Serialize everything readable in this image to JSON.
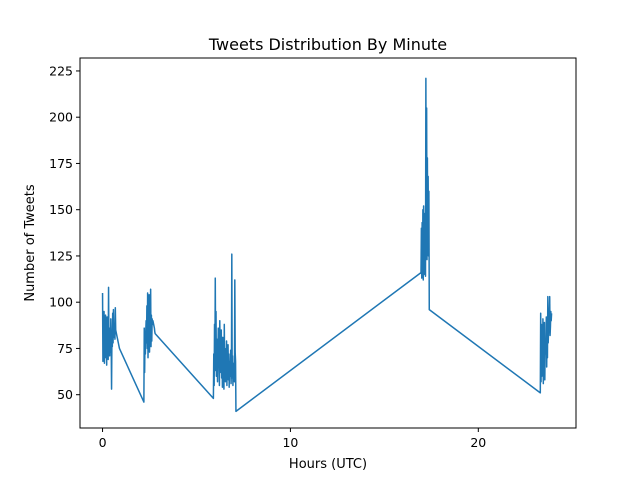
{
  "chart_data": {
    "type": "line",
    "title": "Tweets Distribution By Minute",
    "xlabel": "Hours (UTC)",
    "ylabel": "Number of Tweets",
    "xlim": [
      -1.2,
      25.2
    ],
    "ylim": [
      32,
      232
    ],
    "xticks": [
      0,
      10,
      20
    ],
    "yticks": [
      50,
      75,
      100,
      125,
      150,
      175,
      200,
      225
    ],
    "grid": false,
    "series": [
      {
        "color": "#1f77b4",
        "x": [
          0.0,
          0.02,
          0.04,
          0.06,
          0.08,
          0.1,
          0.12,
          0.14,
          0.16,
          0.18,
          0.2,
          0.22,
          0.24,
          0.26,
          0.28,
          0.3,
          0.32,
          0.34,
          0.36,
          0.38,
          0.4,
          0.42,
          0.44,
          0.46,
          0.48,
          0.5,
          0.52,
          0.54,
          0.56,
          0.58,
          0.6,
          0.62,
          0.64,
          0.66,
          0.68,
          0.7,
          0.72,
          0.74,
          0.76,
          0.78,
          0.8,
          0.82,
          0.84,
          0.86,
          0.88,
          0.9,
          2.2,
          2.22,
          2.24,
          2.26,
          2.28,
          2.3,
          2.32,
          2.34,
          2.36,
          2.38,
          2.4,
          2.42,
          2.44,
          2.46,
          2.48,
          2.5,
          2.52,
          2.54,
          2.56,
          2.58,
          2.6,
          2.62,
          2.64,
          2.66,
          2.68,
          2.7,
          2.72,
          2.74,
          2.76,
          2.78,
          2.8,
          5.9,
          5.92,
          5.94,
          5.96,
          5.98,
          6.0,
          6.02,
          6.04,
          6.06,
          6.08,
          6.1,
          6.12,
          6.14,
          6.16,
          6.18,
          6.2,
          6.22,
          6.24,
          6.26,
          6.28,
          6.3,
          6.32,
          6.34,
          6.36,
          6.38,
          6.4,
          6.42,
          6.44,
          6.46,
          6.48,
          6.5,
          6.52,
          6.54,
          6.56,
          6.58,
          6.6,
          6.62,
          6.64,
          6.66,
          6.68,
          6.7,
          6.72,
          6.74,
          6.76,
          6.78,
          6.8,
          6.82,
          6.84,
          6.86,
          6.88,
          6.9,
          6.92,
          6.94,
          6.96,
          6.98,
          7.0,
          7.02,
          7.04,
          7.06,
          7.08,
          7.1,
          16.95,
          16.97,
          16.99,
          17.01,
          17.03,
          17.05,
          17.07,
          17.09,
          17.11,
          17.13,
          17.15,
          17.17,
          17.19,
          17.21,
          17.23,
          17.25,
          17.27,
          17.29,
          17.31,
          17.33,
          17.35,
          17.37,
          17.39,
          23.3,
          23.32,
          23.34,
          23.36,
          23.38,
          23.4,
          23.42,
          23.44,
          23.46,
          23.48,
          23.5,
          23.52,
          23.54,
          23.56,
          23.58,
          23.6,
          23.62,
          23.64,
          23.66,
          23.68,
          23.7,
          23.72,
          23.74,
          23.76,
          23.78,
          23.8,
          23.82,
          23.84,
          23.86,
          23.88,
          23.9
        ],
        "y": [
          105,
          68,
          90,
          72,
          95,
          67,
          85,
          75,
          93,
          70,
          88,
          66,
          92,
          74,
          83,
          69,
          108,
          77,
          80,
          71,
          86,
          73,
          91,
          79,
          53,
          82,
          76,
          94,
          78,
          96,
          81,
          84,
          87,
          80,
          97,
          85,
          84,
          83,
          82,
          81,
          80,
          79,
          78,
          77,
          76,
          75,
          46,
          86,
          62,
          80,
          72,
          84,
          90,
          78,
          98,
          75,
          105,
          70,
          95,
          80,
          104,
          73,
          88,
          82,
          107,
          76,
          93,
          79,
          91,
          88,
          90,
          89,
          88,
          87,
          86,
          84,
          83,
          48,
          72,
          55,
          88,
          63,
          113,
          68,
          95,
          60,
          75,
          80,
          57,
          70,
          86,
          65,
          78,
          55,
          90,
          73,
          68,
          62,
          85,
          59,
          76,
          54,
          81,
          66,
          70,
          53,
          88,
          64,
          75,
          57,
          69,
          61,
          79,
          55,
          73,
          66,
          77,
          58,
          72,
          54,
          68,
          60,
          65,
          74,
          56,
          63,
          126,
          59,
          71,
          55,
          67,
          62,
          58,
          57,
          112,
          73,
          68,
          41,
          116,
          140,
          113,
          143,
          117,
          150,
          112,
          152,
          115,
          132,
          118,
          148,
          114,
          221,
          130,
          205,
          123,
          178,
          130,
          168,
          125,
          160,
          96,
          51,
          94,
          57,
          88,
          60,
          82,
          66,
          91,
          56,
          85,
          63,
          89,
          58,
          80,
          72,
          76,
          92,
          65,
          86,
          70,
          103,
          78,
          84,
          90,
          94,
          103,
          82,
          87,
          95,
          90,
          94
        ]
      }
    ]
  }
}
